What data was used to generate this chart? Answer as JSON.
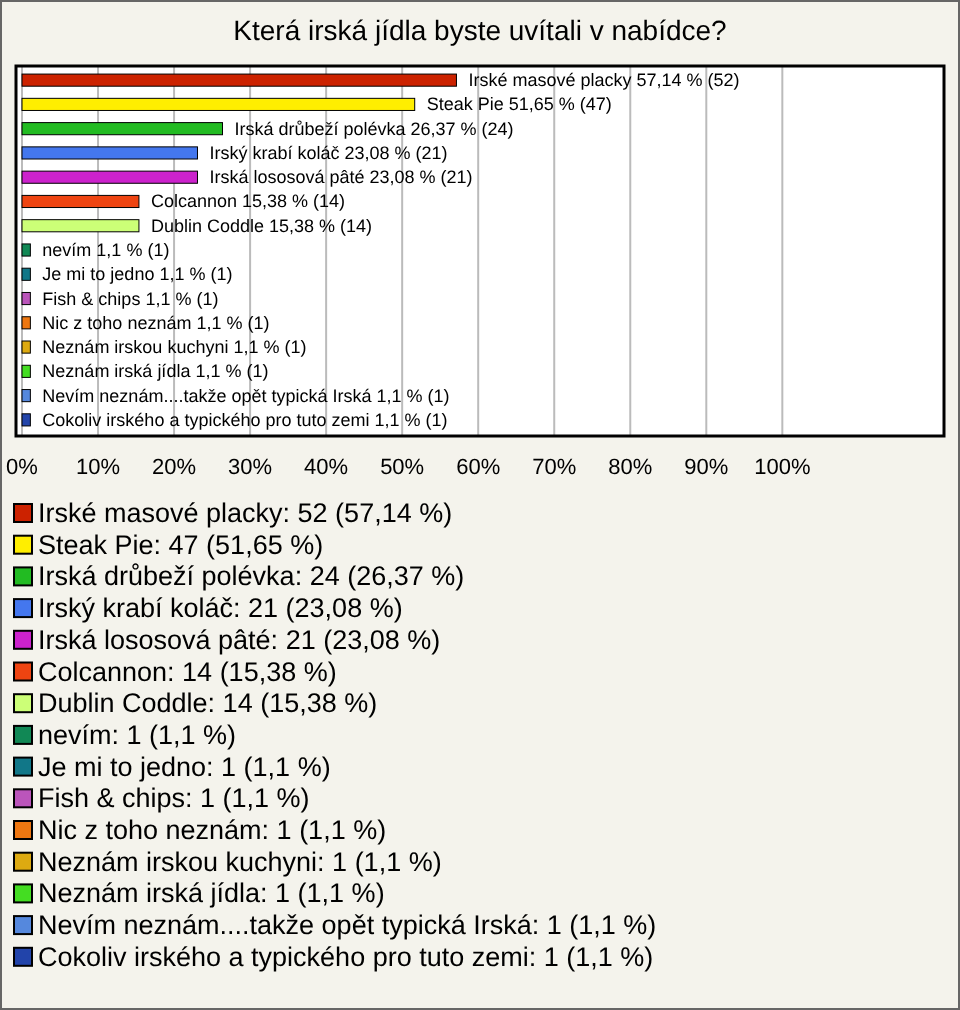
{
  "chart_data": {
    "type": "bar",
    "orientation": "horizontal",
    "title": "Která irská jídla byste uvítali v nabídce?",
    "categories": [
      "Irské masové placky",
      "Steak Pie",
      "Irská drůbeží polévka",
      "Irský krabí koláč",
      "Irská lososová pâté",
      "Colcannon",
      "Dublin Coddle",
      "nevím",
      "Je mi to jedno",
      "Fish & chips",
      "Nic z toho neznám",
      "Neznám irskou kuchyni",
      "Neznám irská jídla",
      "Nevím neznám....takže opět   typická Irská",
      "Cokoliv irského a typického pro tuto zemi"
    ],
    "values": [
      57.14,
      51.65,
      26.37,
      23.08,
      23.08,
      15.38,
      15.38,
      1.1,
      1.1,
      1.1,
      1.1,
      1.1,
      1.1,
      1.1,
      1.1
    ],
    "value_labels": [
      "57,14 % (52)",
      "51,65 % (47)",
      "26,37 % (24)",
      "23,08 % (21)",
      "23,08 % (21)",
      "15,38 % (14)",
      "15,38 % (14)",
      "1,1 % (1)",
      "1,1 % (1)",
      "1,1 % (1)",
      "1,1 % (1)",
      "1,1 % (1)",
      "1,1 % (1)",
      "1,1 % (1)",
      "1,1 % (1)"
    ],
    "colors": [
      "#cc2200",
      "#ffee00",
      "#22bb22",
      "#4477ee",
      "#cc22cc",
      "#ee4411",
      "#ccff77",
      "#118855",
      "#117788",
      "#bb55bb",
      "#ee7711",
      "#ddaa11",
      "#44dd22",
      "#5588dd",
      "#2244aa"
    ],
    "xlim": [
      0,
      121
    ],
    "xticks": [
      {
        "value": 0,
        "label": "0%"
      },
      {
        "value": 10,
        "label": "10%"
      },
      {
        "value": 20,
        "label": "20%"
      },
      {
        "value": 30,
        "label": "30%"
      },
      {
        "value": 40,
        "label": "40%"
      },
      {
        "value": 50,
        "label": "50%"
      },
      {
        "value": 60,
        "label": "60%"
      },
      {
        "value": 70,
        "label": "70%"
      },
      {
        "value": 80,
        "label": "80%"
      },
      {
        "value": 90,
        "label": "90%"
      },
      {
        "value": 100,
        "label": "100%"
      }
    ],
    "grid": "x",
    "annotations": [
      "Irské masové placky: 52 (57,14 %)",
      "Steak Pie: 47 (51,65 %)",
      "Irská drůbeží polévka: 24 (26,37 %)",
      "Irský krabí koláč: 21 (23,08 %)",
      "Irská lososová pâté: 21 (23,08 %)",
      "Colcannon: 14 (15,38 %)",
      "Dublin Coddle: 14 (15,38 %)",
      "nevím: 1 (1,1 %)",
      "Je mi to jedno: 1 (1,1 %)",
      "Fish & chips: 1 (1,1 %)",
      "Nic z toho neznám: 1 (1,1 %)",
      "Neznám irskou kuchyni: 1 (1,1 %)",
      "Neznám irská jídla: 1 (1,1 %)",
      "Nevím neznám....takže opět   typická Irská: 1 (1,1 %)",
      "Cokoliv irského a typického pro tuto zemi: 1 (1,1 %)"
    ]
  }
}
